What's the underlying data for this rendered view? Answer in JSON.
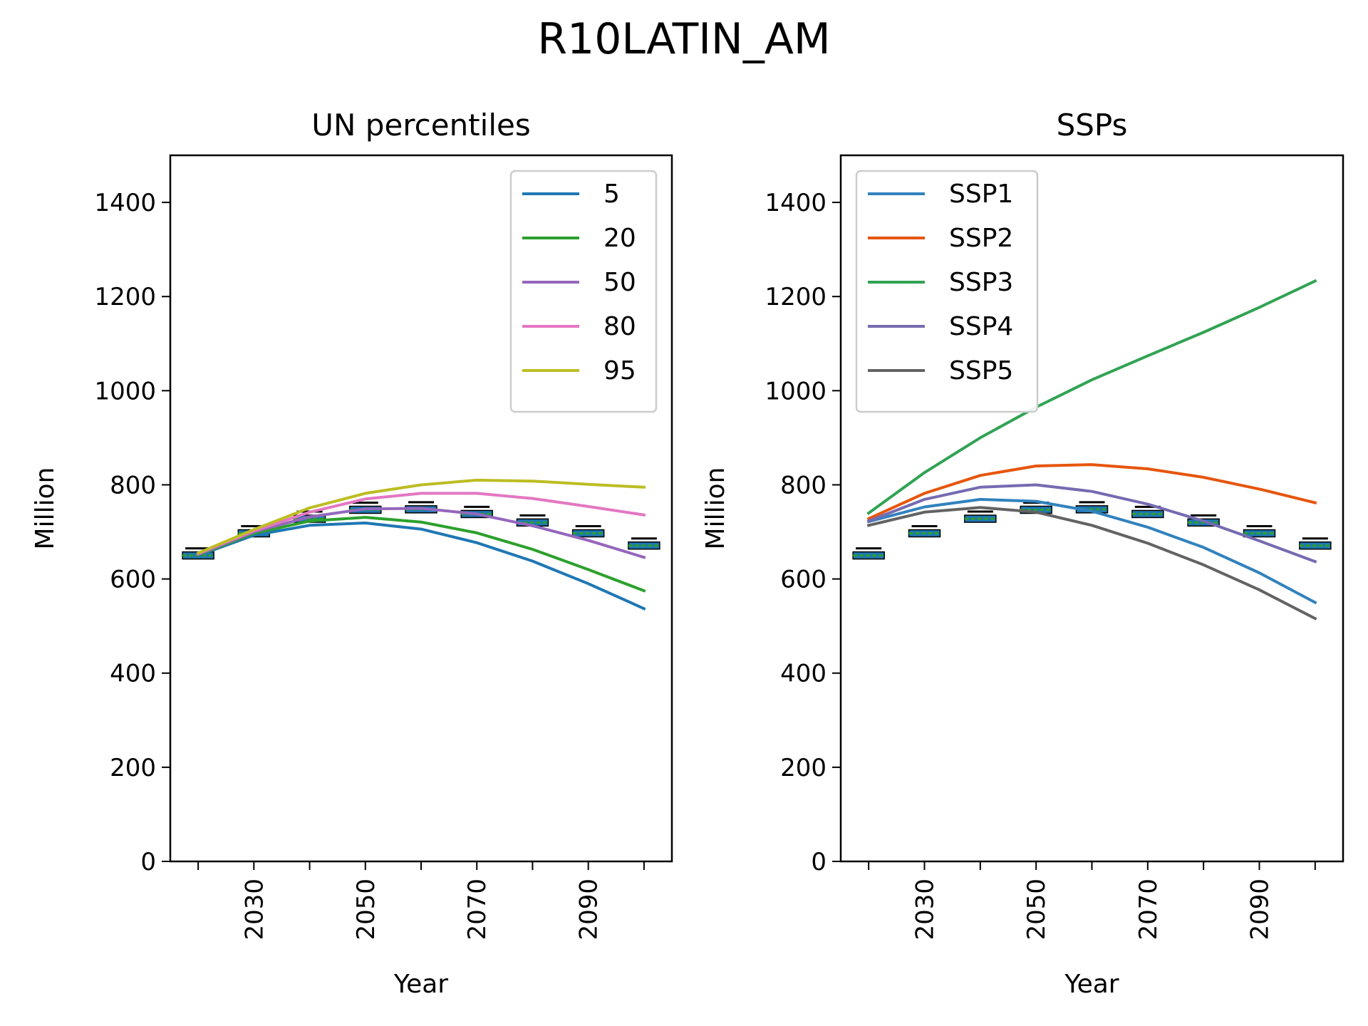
{
  "figure_title": "R10LATIN_AM",
  "chart_data": [
    {
      "type": "line",
      "title": "UN percentiles",
      "xlabel": "Year",
      "ylabel": "Million",
      "xlim": [
        2015,
        2105
      ],
      "ylim": [
        0,
        1500
      ],
      "yticks": [
        0,
        200,
        400,
        600,
        800,
        1000,
        1200,
        1400
      ],
      "ytick_labels": [
        "0",
        "200",
        "400",
        "600",
        "800",
        "1000",
        "1200",
        "1400"
      ],
      "xticks": [
        2020,
        2030,
        2040,
        2050,
        2060,
        2070,
        2080,
        2090,
        2100
      ],
      "xtick_labels": [
        "",
        "2030",
        "",
        "2050",
        "",
        "2070",
        "",
        "2090",
        ""
      ],
      "legend_loc": "upper right",
      "x": [
        2020,
        2030,
        2040,
        2050,
        2060,
        2070,
        2080,
        2090,
        2100
      ],
      "series": [
        {
          "name": "5",
          "color": "#1f77b4",
          "values": [
            650,
            693,
            714,
            719,
            706,
            677,
            638,
            590,
            537
          ]
        },
        {
          "name": "20",
          "color": "#2ca02c",
          "values": [
            651,
            697,
            723,
            731,
            721,
            698,
            663,
            620,
            575
          ]
        },
        {
          "name": "50",
          "color": "#9467bd",
          "values": [
            652,
            700,
            732,
            749,
            750,
            738,
            713,
            682,
            646
          ]
        },
        {
          "name": "80",
          "color": "#e377c2",
          "values": [
            654,
            702,
            742,
            770,
            782,
            782,
            771,
            754,
            736
          ]
        },
        {
          "name": "95",
          "color": "#bcbd22",
          "values": [
            655,
            705,
            751,
            782,
            800,
            810,
            808,
            801,
            795
          ]
        }
      ],
      "reference_boxes": {
        "name": "boxplot markers",
        "color": "#2ca02c",
        "x": [
          2020,
          2030,
          2040,
          2050,
          2060,
          2070,
          2080,
          2090,
          2100
        ],
        "values": [
          650,
          697,
          728,
          747,
          748,
          738,
          720,
          697,
          671
        ]
      }
    },
    {
      "type": "line",
      "title": "SSPs",
      "xlabel": "Year",
      "ylabel": "Million",
      "xlim": [
        2015,
        2105
      ],
      "ylim": [
        0,
        1500
      ],
      "yticks": [
        0,
        200,
        400,
        600,
        800,
        1000,
        1200,
        1400
      ],
      "ytick_labels": [
        "0",
        "200",
        "400",
        "600",
        "800",
        "1000",
        "1200",
        "1400"
      ],
      "xticks": [
        2020,
        2030,
        2040,
        2050,
        2060,
        2070,
        2080,
        2090,
        2100
      ],
      "xtick_labels": [
        "",
        "2030",
        "",
        "2050",
        "",
        "2070",
        "",
        "2090",
        ""
      ],
      "legend_loc": "upper left",
      "x": [
        2020,
        2030,
        2040,
        2050,
        2060,
        2070,
        2080,
        2090,
        2100
      ],
      "series": [
        {
          "name": "SSP1",
          "color": "#3182bd",
          "values": [
            722,
            753,
            769,
            765,
            744,
            710,
            667,
            613,
            550
          ]
        },
        {
          "name": "SSP2",
          "color": "#e6550d",
          "values": [
            728,
            782,
            820,
            840,
            843,
            834,
            816,
            791,
            762
          ]
        },
        {
          "name": "SSP3",
          "color": "#31a354",
          "values": [
            740,
            826,
            900,
            965,
            1023,
            1074,
            1124,
            1177,
            1233
          ]
        },
        {
          "name": "SSP4",
          "color": "#756bb1",
          "values": [
            723,
            769,
            795,
            800,
            786,
            759,
            723,
            681,
            637
          ]
        },
        {
          "name": "SSP5",
          "color": "#636363",
          "values": [
            714,
            742,
            752,
            742,
            714,
            676,
            630,
            577,
            516
          ]
        }
      ],
      "reference_boxes": {
        "name": "boxplot markers",
        "color": "#2ca02c",
        "x": [
          2020,
          2030,
          2040,
          2050,
          2060,
          2070,
          2080,
          2090,
          2100
        ],
        "values": [
          650,
          697,
          728,
          747,
          748,
          738,
          720,
          697,
          671
        ]
      }
    }
  ]
}
